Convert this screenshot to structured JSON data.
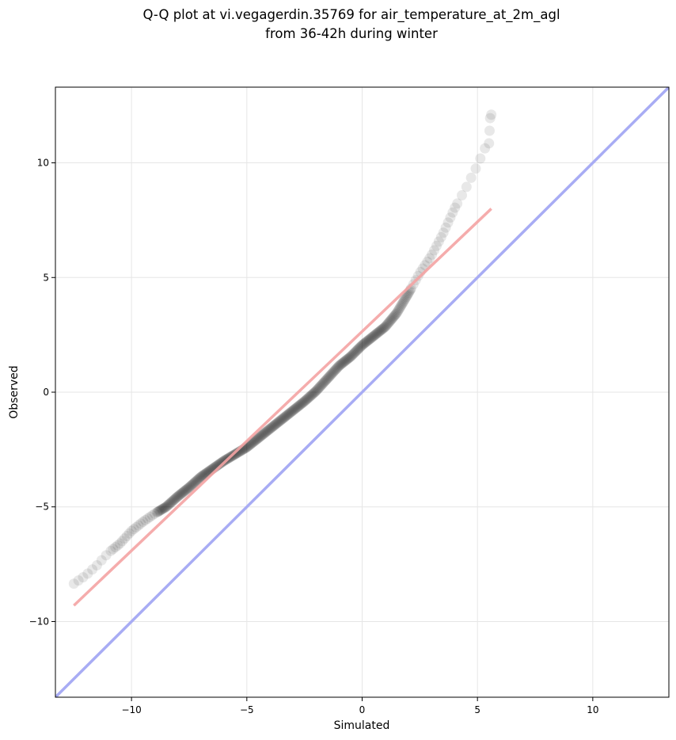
{
  "chart_data": {
    "type": "scatter",
    "title_line1": "Q-Q plot at vi.vegagerdin.35769 for air_temperature_at_2m_agl",
    "title_line2": "from 36-42h during winter",
    "xlabel": "Simulated",
    "ylabel": "Observed",
    "xlim": [
      -13.3,
      13.3
    ],
    "ylim": [
      -13.3,
      13.3
    ],
    "x_ticks": [
      -10,
      -5,
      0,
      5,
      10
    ],
    "y_ticks": [
      -10,
      -5,
      0,
      5,
      10
    ],
    "x_tick_labels": [
      "−10",
      "−5",
      "0",
      "5",
      "10"
    ],
    "y_tick_labels": [
      "−10",
      "−5",
      "0",
      "5",
      "10"
    ],
    "grid": true,
    "quantile_curve": [
      [
        -12.5,
        -8.35
      ],
      [
        -12.0,
        -8.0
      ],
      [
        -11.5,
        -7.55
      ],
      [
        -11.0,
        -7.0
      ],
      [
        -10.5,
        -6.6
      ],
      [
        -10.0,
        -6.05
      ],
      [
        -9.5,
        -5.65
      ],
      [
        -9.0,
        -5.3
      ],
      [
        -8.5,
        -5.0
      ],
      [
        -8.0,
        -4.55
      ],
      [
        -7.5,
        -4.15
      ],
      [
        -7.0,
        -3.7
      ],
      [
        -6.5,
        -3.35
      ],
      [
        -6.0,
        -3.0
      ],
      [
        -5.5,
        -2.7
      ],
      [
        -5.0,
        -2.4
      ],
      [
        -4.5,
        -2.0
      ],
      [
        -4.0,
        -1.6
      ],
      [
        -3.5,
        -1.2
      ],
      [
        -3.0,
        -0.8
      ],
      [
        -2.5,
        -0.4
      ],
      [
        -2.0,
        0.05
      ],
      [
        -1.5,
        0.6
      ],
      [
        -1.0,
        1.15
      ],
      [
        -0.5,
        1.55
      ],
      [
        0.0,
        2.05
      ],
      [
        0.5,
        2.45
      ],
      [
        1.0,
        2.85
      ],
      [
        1.5,
        3.45
      ],
      [
        2.0,
        4.3
      ],
      [
        2.5,
        5.2
      ],
      [
        3.0,
        5.95
      ],
      [
        3.5,
        6.9
      ],
      [
        4.0,
        8.0
      ],
      [
        4.5,
        8.9
      ],
      [
        5.0,
        9.9
      ],
      [
        5.3,
        10.6
      ],
      [
        5.5,
        10.85
      ],
      [
        5.55,
        11.95
      ],
      [
        5.6,
        12.1
      ]
    ],
    "regression_line": {
      "x": [
        -12.5,
        5.6
      ],
      "y": [
        -9.3,
        8.0
      ]
    },
    "identity_line": {
      "x": [
        -13.3,
        13.3
      ],
      "y": [
        -13.3,
        13.3
      ]
    },
    "colors": {
      "points": "#000000",
      "regression": "#f4a3a3",
      "identity": "#a8acf4",
      "grid": "#e6e6e6"
    }
  }
}
